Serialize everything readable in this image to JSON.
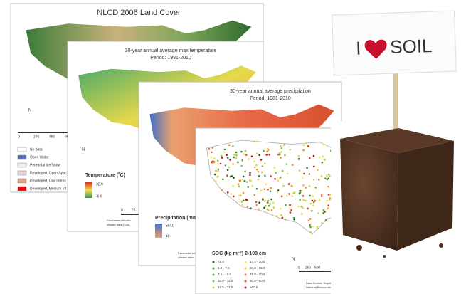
{
  "maps": [
    {
      "title": "NLCD 2006 Land Cover",
      "north": "N",
      "scale": [
        "0",
        "240",
        "480",
        "960"
      ],
      "legend": [
        "No data",
        "Open Water",
        "Perennial Ice/Snow",
        "Developed, Open Spac",
        "Developed, Low Intens",
        "Developed, Medium Int"
      ]
    },
    {
      "title": "30-year annual average max temperature",
      "period": "Period: 1981-2010",
      "north": "N",
      "legend_title": "Temperature (˚C)",
      "legend_high": "32.9",
      "legend_low": "-6.6",
      "scale": [
        "0",
        "25"
      ],
      "source": [
        "Parameter-elevatio",
        "climate data (1981"
      ]
    },
    {
      "title": "30-year annual average precipitation",
      "period": "Period: 1981-2010",
      "legend_title": "Precipitation (mm",
      "legend_high": "5641",
      "legend_low": "46",
      "source": [
        "Parameter-elev",
        "climate data"
      ]
    },
    {
      "legend_title": "SOC (kg m⁻²) 0-100 cm",
      "north": "N",
      "legend": [
        "<5.0",
        "5.0 - 7.5",
        "7.5 - 10.0",
        "10.0 - 12.5",
        "12.5 - 17.5",
        "17.5 - 20.0",
        "20.0 - 25.0",
        "25.0 - 30.0",
        "30.0 - 60.0",
        ">60.0"
      ],
      "scale": [
        "0",
        "250",
        "500",
        "1,000",
        "1,500",
        "2,000"
      ],
      "scale_unit": "Kilometers",
      "source": [
        "Data Source: Rapid Carbon Assessment (RaCA) Project,",
        "National Resources Conservation Service (NRCS)"
      ]
    }
  ],
  "sign": {
    "left": "I",
    "right": "SOIL"
  }
}
